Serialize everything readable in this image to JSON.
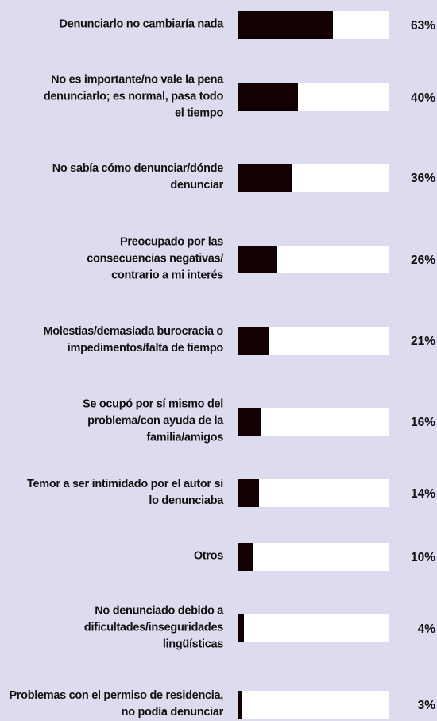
{
  "chart_data": {
    "type": "bar",
    "orientation": "horizontal",
    "categories": [
      "Denunciarlo no cambiaría nada",
      "No es importante/no vale la pena denunciarlo; es normal, pasa todo el tiempo",
      "No sabía cómo denunciar/dónde denunciar",
      "Preocupado por las consecuencias negativas/ contrario a mi interés",
      "Molestias/demasiada burocracia o impedimentos/falta de tiempo",
      "Se ocupó por sí mismo del problema/con ayuda de la familia/amigos",
      "Temor a ser intimidado por el autor si lo denunciaba",
      "Otros",
      "No denunciado debido a dificultades/inseguridades lingüísticas",
      "Problemas con el permiso de residencia, no podía denunciar"
    ],
    "values": [
      63,
      40,
      36,
      26,
      21,
      16,
      14,
      10,
      4,
      3
    ],
    "value_labels": [
      "63%",
      "40%",
      "36%",
      "26%",
      "21%",
      "16%",
      "14%",
      "10%",
      "4%",
      "3%"
    ],
    "color": "#120002",
    "xlim": [
      0,
      100
    ]
  }
}
